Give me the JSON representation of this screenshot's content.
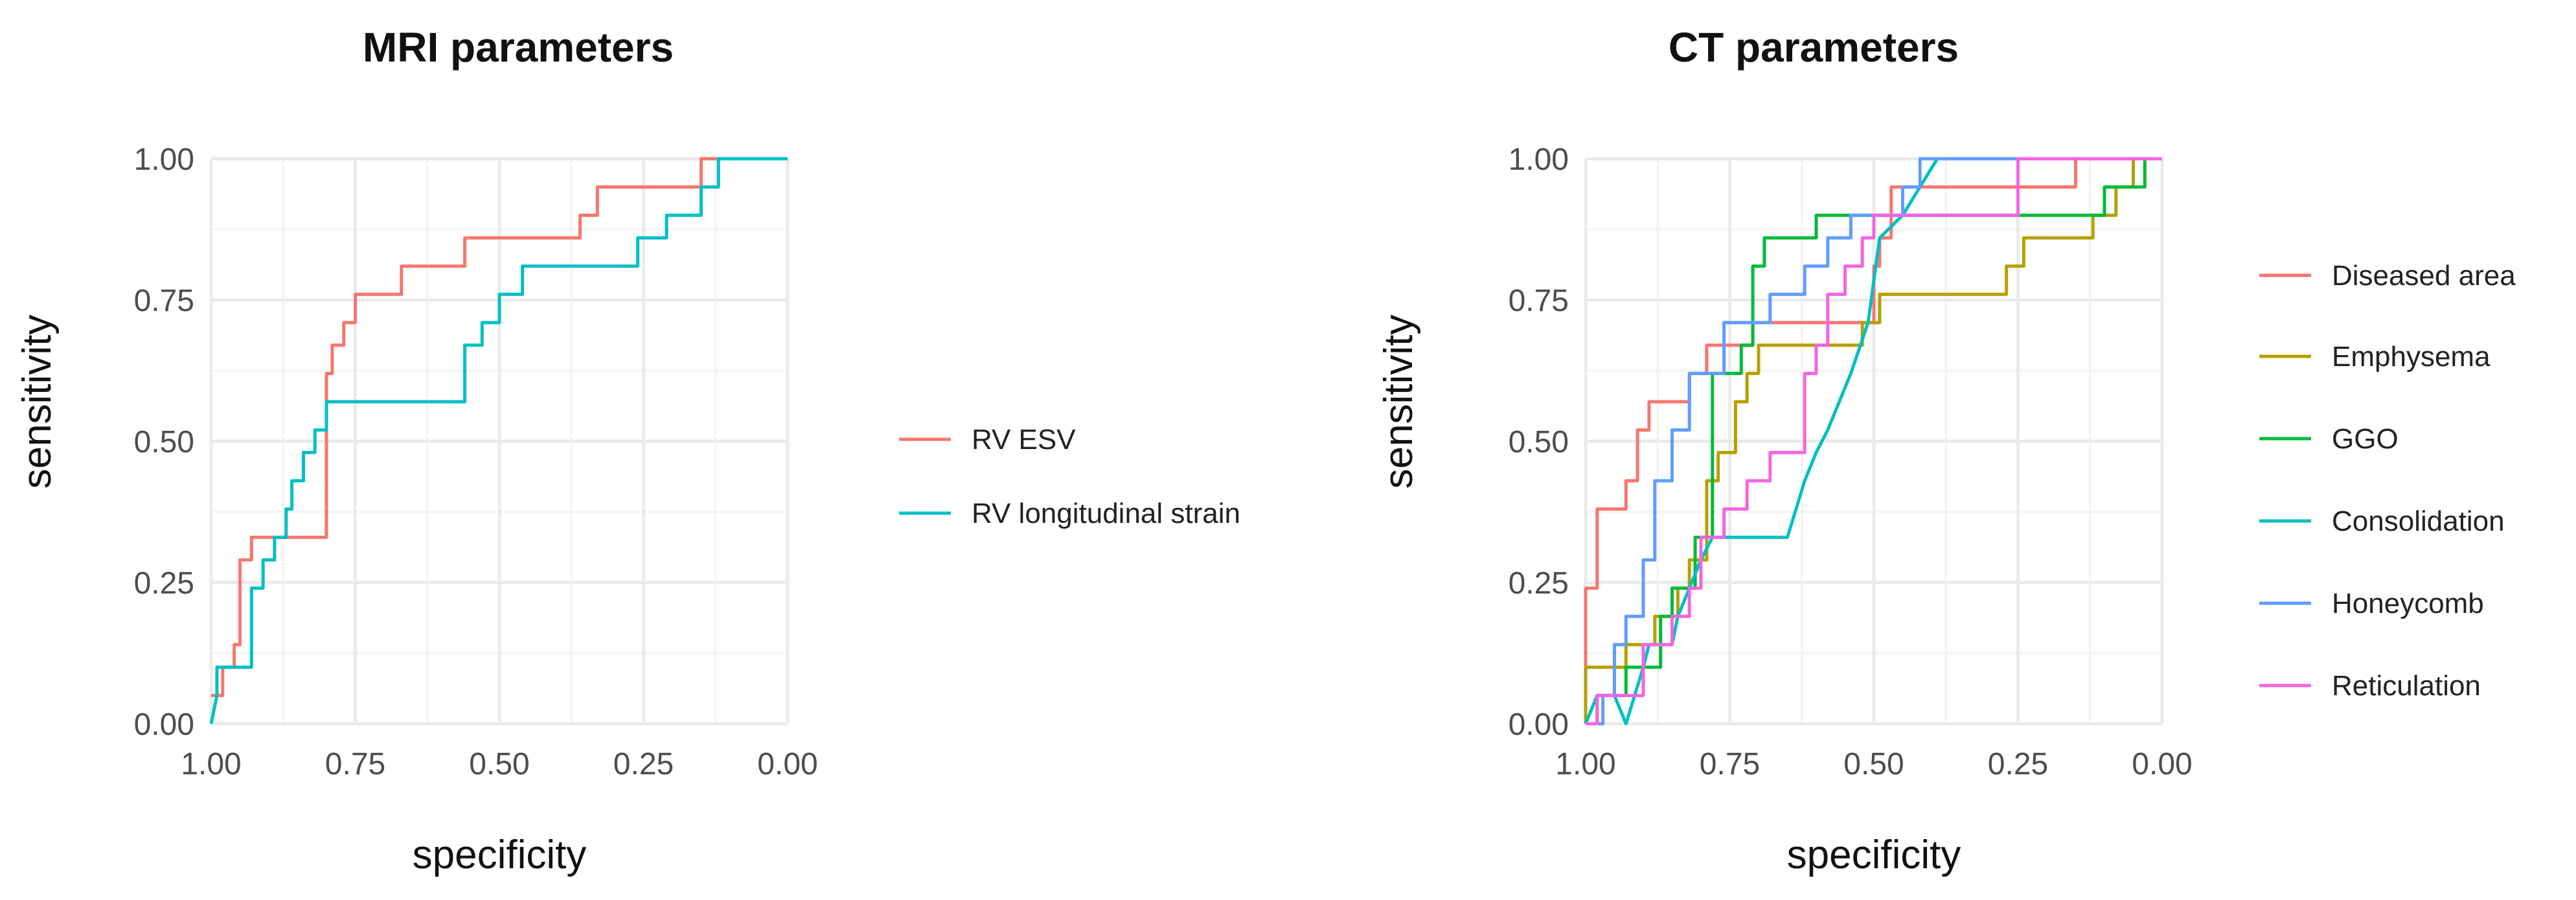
{
  "chart_data": [
    {
      "type": "line",
      "title": "MRI parameters",
      "xlabel": "specificity",
      "ylabel": "sensitivity",
      "xlim": [
        1.0,
        0.0
      ],
      "ylim": [
        0.0,
        1.0
      ],
      "x_ticks": [
        "1.00",
        "0.75",
        "0.50",
        "0.25",
        "0.00"
      ],
      "y_ticks": [
        "0.00",
        "0.25",
        "0.50",
        "0.75",
        "1.00"
      ],
      "grid": true,
      "legend_position": "right",
      "series": [
        {
          "name": "RV ESV",
          "color": "#F8766D",
          "x": [
            1.0,
            0.98,
            0.98,
            0.96,
            0.96,
            0.95,
            0.95,
            0.93,
            0.93,
            0.9,
            0.9,
            0.8,
            0.8,
            0.79,
            0.79,
            0.77,
            0.77,
            0.75,
            0.75,
            0.67,
            0.67,
            0.65,
            0.65,
            0.56,
            0.56,
            0.53,
            0.53,
            0.36,
            0.36,
            0.33,
            0.33,
            0.15,
            0.15,
            0.12,
            0.12,
            0.0
          ],
          "y": [
            0.05,
            0.05,
            0.1,
            0.1,
            0.14,
            0.14,
            0.29,
            0.29,
            0.33,
            0.33,
            0.33,
            0.33,
            0.62,
            0.62,
            0.67,
            0.67,
            0.71,
            0.71,
            0.76,
            0.76,
            0.81,
            0.81,
            0.81,
            0.81,
            0.86,
            0.86,
            0.86,
            0.86,
            0.9,
            0.9,
            0.95,
            0.95,
            1.0,
            1.0,
            1.0,
            1.0
          ]
        },
        {
          "name": "RV longitudinal strain",
          "color": "#00BFC4",
          "x": [
            1.0,
            0.99,
            0.99,
            0.97,
            0.97,
            0.93,
            0.93,
            0.91,
            0.91,
            0.89,
            0.89,
            0.87,
            0.87,
            0.86,
            0.86,
            0.84,
            0.84,
            0.82,
            0.82,
            0.8,
            0.8,
            0.79,
            0.79,
            0.56,
            0.56,
            0.53,
            0.53,
            0.5,
            0.5,
            0.48,
            0.48,
            0.46,
            0.46,
            0.44,
            0.44,
            0.26,
            0.26,
            0.24,
            0.24,
            0.21,
            0.21,
            0.15,
            0.15,
            0.12,
            0.12,
            0.0
          ],
          "y": [
            0.0,
            0.05,
            0.1,
            0.1,
            0.1,
            0.1,
            0.24,
            0.24,
            0.29,
            0.29,
            0.33,
            0.33,
            0.38,
            0.38,
            0.43,
            0.43,
            0.48,
            0.48,
            0.52,
            0.52,
            0.57,
            0.57,
            0.57,
            0.57,
            0.67,
            0.67,
            0.71,
            0.71,
            0.76,
            0.76,
            0.76,
            0.76,
            0.81,
            0.81,
            0.81,
            0.81,
            0.86,
            0.86,
            0.86,
            0.86,
            0.9,
            0.9,
            0.95,
            0.95,
            1.0,
            1.0
          ]
        }
      ]
    },
    {
      "type": "line",
      "title": "CT parameters",
      "xlabel": "specificity",
      "ylabel": "sensitivity",
      "xlim": [
        1.0,
        0.0
      ],
      "ylim": [
        0.0,
        1.0
      ],
      "x_ticks": [
        "1.00",
        "0.75",
        "0.50",
        "0.25",
        "0.00"
      ],
      "y_ticks": [
        "0.00",
        "0.25",
        "0.50",
        "0.75",
        "1.00"
      ],
      "grid": true,
      "legend_position": "right",
      "series": [
        {
          "name": "Diseased area",
          "color": "#F8766D",
          "x": [
            1.0,
            1.0,
            0.98,
            0.98,
            0.93,
            0.93,
            0.91,
            0.91,
            0.89,
            0.89,
            0.87,
            0.87,
            0.82,
            0.82,
            0.79,
            0.79,
            0.71,
            0.71,
            0.69,
            0.69,
            0.5,
            0.5,
            0.49,
            0.49,
            0.47,
            0.47,
            0.4,
            0.4,
            0.15,
            0.15,
            0.0
          ],
          "y": [
            0.0,
            0.24,
            0.24,
            0.38,
            0.38,
            0.43,
            0.43,
            0.52,
            0.52,
            0.57,
            0.57,
            0.57,
            0.57,
            0.62,
            0.62,
            0.67,
            0.67,
            0.71,
            0.71,
            0.71,
            0.71,
            0.81,
            0.81,
            0.86,
            0.86,
            0.95,
            0.95,
            0.95,
            0.95,
            1.0,
            1.0
          ]
        },
        {
          "name": "Emphysema",
          "color": "#B79F00",
          "x": [
            1.0,
            1.0,
            0.95,
            0.95,
            0.93,
            0.93,
            0.88,
            0.88,
            0.86,
            0.86,
            0.84,
            0.84,
            0.82,
            0.82,
            0.79,
            0.79,
            0.77,
            0.77,
            0.74,
            0.74,
            0.72,
            0.72,
            0.7,
            0.7,
            0.66,
            0.66,
            0.52,
            0.52,
            0.49,
            0.49,
            0.27,
            0.27,
            0.24,
            0.24,
            0.12,
            0.12,
            0.08,
            0.08,
            0.05,
            0.05,
            0.0
          ],
          "y": [
            0.0,
            0.1,
            0.1,
            0.1,
            0.1,
            0.14,
            0.14,
            0.19,
            0.19,
            0.19,
            0.19,
            0.24,
            0.24,
            0.29,
            0.29,
            0.43,
            0.43,
            0.48,
            0.48,
            0.57,
            0.57,
            0.62,
            0.62,
            0.67,
            0.67,
            0.67,
            0.67,
            0.71,
            0.71,
            0.76,
            0.76,
            0.81,
            0.81,
            0.86,
            0.86,
            0.9,
            0.9,
            0.95,
            0.95,
            1.0,
            1.0
          ]
        },
        {
          "name": "GGO",
          "color": "#00BA38",
          "x": [
            1.0,
            0.98,
            0.98,
            0.93,
            0.93,
            0.87,
            0.87,
            0.85,
            0.85,
            0.81,
            0.81,
            0.8,
            0.8,
            0.78,
            0.78,
            0.73,
            0.73,
            0.71,
            0.71,
            0.69,
            0.69,
            0.62,
            0.62,
            0.6,
            0.6,
            0.58,
            0.58,
            0.54,
            0.54,
            0.29,
            0.29,
            0.2,
            0.2,
            0.1,
            0.1,
            0.03,
            0.03,
            0.0
          ],
          "y": [
            0.0,
            0.0,
            0.05,
            0.05,
            0.1,
            0.1,
            0.19,
            0.19,
            0.24,
            0.24,
            0.33,
            0.33,
            0.33,
            0.33,
            0.62,
            0.62,
            0.67,
            0.67,
            0.81,
            0.81,
            0.86,
            0.86,
            0.86,
            0.86,
            0.9,
            0.9,
            0.9,
            0.9,
            0.9,
            0.9,
            0.9,
            0.9,
            0.9,
            0.9,
            0.95,
            0.95,
            1.0,
            1.0
          ]
        },
        {
          "name": "Consolidation",
          "color": "#00BFC4",
          "x": [
            1.0,
            0.98,
            0.98,
            0.95,
            0.95,
            0.93,
            0.93,
            0.9,
            0.9,
            0.89,
            0.89,
            0.85,
            0.85,
            0.84,
            0.84,
            0.82,
            0.82,
            0.8,
            0.8,
            0.78,
            0.78,
            0.76,
            0.76,
            0.74,
            0.74,
            0.7,
            0.7,
            0.65,
            0.65,
            0.62,
            0.62,
            0.6,
            0.6,
            0.58,
            0.58,
            0.56,
            0.56,
            0.54,
            0.54,
            0.51,
            0.51,
            0.49,
            0.49,
            0.45,
            0.45,
            0.42,
            0.42,
            0.39,
            0.39,
            0.0
          ],
          "y": [
            0.0,
            0.05,
            0.05,
            0.05,
            0.05,
            0.0,
            0.0,
            0.1,
            0.1,
            0.14,
            0.14,
            0.14,
            0.14,
            0.19,
            0.19,
            0.24,
            0.24,
            0.29,
            0.29,
            0.33,
            0.33,
            0.33,
            0.33,
            0.33,
            0.33,
            0.33,
            0.33,
            0.33,
            0.33,
            0.43,
            0.43,
            0.48,
            0.48,
            0.52,
            0.52,
            0.57,
            0.57,
            0.62,
            0.62,
            0.71,
            0.71,
            0.86,
            0.86,
            0.9,
            0.9,
            0.95,
            0.95,
            1.0,
            1.0,
            1.0
          ]
        },
        {
          "name": "Honeycomb",
          "color": "#619CFF",
          "x": [
            1.0,
            0.97,
            0.97,
            0.95,
            0.95,
            0.93,
            0.93,
            0.9,
            0.9,
            0.88,
            0.88,
            0.85,
            0.85,
            0.82,
            0.82,
            0.8,
            0.8,
            0.76,
            0.76,
            0.72,
            0.72,
            0.68,
            0.68,
            0.62,
            0.62,
            0.58,
            0.58,
            0.54,
            0.54,
            0.51,
            0.51,
            0.45,
            0.45,
            0.42,
            0.42,
            0.35,
            0.35,
            0.0
          ],
          "y": [
            0.0,
            0.0,
            0.05,
            0.05,
            0.14,
            0.14,
            0.19,
            0.19,
            0.29,
            0.29,
            0.43,
            0.43,
            0.52,
            0.52,
            0.62,
            0.62,
            0.62,
            0.62,
            0.71,
            0.71,
            0.71,
            0.71,
            0.76,
            0.76,
            0.81,
            0.81,
            0.86,
            0.86,
            0.9,
            0.9,
            0.9,
            0.9,
            0.95,
            0.95,
            1.0,
            1.0,
            1.0,
            1.0
          ]
        },
        {
          "name": "Reticulation",
          "color": "#F564E3",
          "x": [
            1.0,
            0.98,
            0.98,
            0.93,
            0.93,
            0.9,
            0.9,
            0.88,
            0.88,
            0.85,
            0.85,
            0.82,
            0.82,
            0.8,
            0.8,
            0.76,
            0.76,
            0.72,
            0.72,
            0.68,
            0.68,
            0.65,
            0.65,
            0.62,
            0.62,
            0.6,
            0.6,
            0.58,
            0.58,
            0.55,
            0.55,
            0.52,
            0.52,
            0.5,
            0.5,
            0.45,
            0.45,
            0.25,
            0.25,
            0.0
          ],
          "y": [
            0.0,
            0.0,
            0.05,
            0.05,
            0.05,
            0.05,
            0.14,
            0.14,
            0.14,
            0.14,
            0.19,
            0.19,
            0.24,
            0.24,
            0.33,
            0.33,
            0.38,
            0.38,
            0.43,
            0.43,
            0.48,
            0.48,
            0.48,
            0.48,
            0.62,
            0.62,
            0.67,
            0.67,
            0.76,
            0.76,
            0.81,
            0.81,
            0.86,
            0.86,
            0.9,
            0.9,
            0.9,
            0.9,
            1.0,
            1.0
          ]
        }
      ]
    }
  ]
}
